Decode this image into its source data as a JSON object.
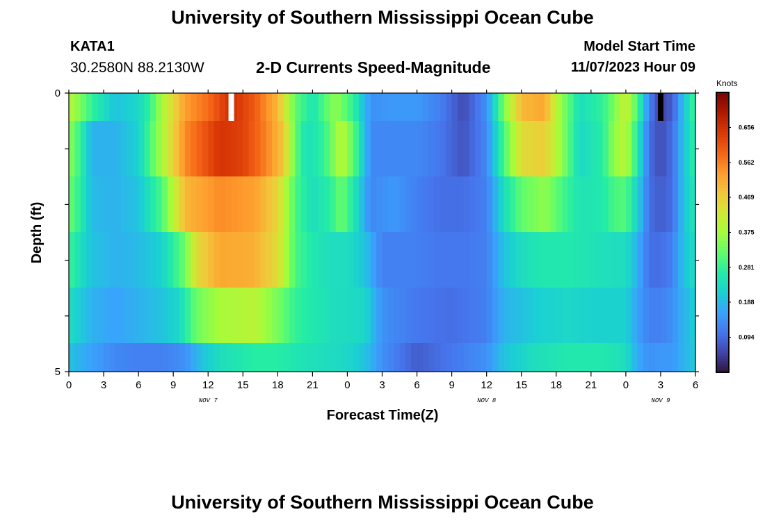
{
  "header": {
    "title": "University of Southern Mississippi Ocean Cube",
    "station_id": "KATA1",
    "coordinates": "30.2580N  88.2130W",
    "plot_title": "2-D Currents Speed-Magnitude",
    "model_start_label": "Model Start Time",
    "model_start_value": "11/07/2023 Hour 09"
  },
  "footer": {
    "title": "University of Southern Mississippi Ocean Cube"
  },
  "chart_data": {
    "type": "heatmap",
    "title": "2-D Currents Speed-Magnitude",
    "xlabel": "Forecast Time(Z)",
    "ylabel": "Depth (ft)",
    "x_tick_labels": [
      "0",
      "3",
      "6",
      "9",
      "12",
      "15",
      "18",
      "21",
      "0",
      "3",
      "6",
      "9",
      "12",
      "15",
      "18",
      "21",
      "0",
      "3",
      "6"
    ],
    "x_hours": [
      0,
      3,
      6,
      9,
      12,
      15,
      18,
      21,
      24,
      27,
      30,
      33,
      36,
      39,
      42,
      45,
      48,
      51,
      54
    ],
    "xlim": [
      0,
      54
    ],
    "day_labels": [
      {
        "label": "NOV 7",
        "hour": 12
      },
      {
        "label": "NOV 8",
        "hour": 36
      },
      {
        "label": "NOV 9",
        "hour": 51
      }
    ],
    "y_tick_labels": [
      "0",
      "5"
    ],
    "ylim": [
      0,
      5
    ],
    "depth_layers_ft": [
      0.25,
      1.25,
      2.25,
      3.25,
      4.25,
      4.75
    ],
    "colorbar": {
      "label": "Knots",
      "tick_labels": [
        "0.656",
        "0.562",
        "0.469",
        "0.375",
        "0.281",
        "0.188",
        "0.094"
      ],
      "range": [
        0,
        0.75
      ],
      "colormap": [
        "#30123b",
        "#4145ab",
        "#4675ed",
        "#39a2fc",
        "#1bcfd4",
        "#24eca6",
        "#61fc6c",
        "#a4fc3b",
        "#d1e834",
        "#f3c63a",
        "#fe9b2d",
        "#f36315",
        "#d93806",
        "#b11901",
        "#7a0402"
      ]
    },
    "time_profiles": {
      "comment_free": true,
      "layers": [
        [
          [
            0,
            0.4
          ],
          [
            2,
            0.28
          ],
          [
            4,
            0.2
          ],
          [
            6,
            0.23
          ],
          [
            7,
            0.28
          ],
          [
            8,
            0.38
          ],
          [
            10,
            0.53
          ],
          [
            12,
            0.58
          ],
          [
            14,
            0.66
          ],
          [
            16,
            0.6
          ],
          [
            18,
            0.5
          ],
          [
            19.5,
            0.32
          ],
          [
            21,
            0.25
          ],
          [
            23,
            0.36
          ],
          [
            24.5,
            0.28
          ],
          [
            26,
            0.14
          ],
          [
            28,
            0.15
          ],
          [
            30,
            0.15
          ],
          [
            32,
            0.12
          ],
          [
            34,
            0.06
          ],
          [
            36,
            0.14
          ],
          [
            37.5,
            0.34
          ],
          [
            39,
            0.5
          ],
          [
            41,
            0.52
          ],
          [
            42,
            0.4
          ],
          [
            44,
            0.24
          ],
          [
            46,
            0.28
          ],
          [
            47,
            0.34
          ],
          [
            48,
            0.42
          ],
          [
            49,
            0.3
          ],
          [
            50,
            0.12
          ],
          [
            51,
            0.05
          ],
          [
            52,
            0.08
          ],
          [
            53,
            0.2
          ],
          [
            54,
            0.3
          ]
        ],
        [
          [
            0,
            0.36
          ],
          [
            1,
            0.28
          ],
          [
            2,
            0.18
          ],
          [
            4,
            0.18
          ],
          [
            6,
            0.22
          ],
          [
            8,
            0.38
          ],
          [
            10,
            0.55
          ],
          [
            13,
            0.65
          ],
          [
            15,
            0.63
          ],
          [
            17,
            0.56
          ],
          [
            18.5,
            0.48
          ],
          [
            19.5,
            0.32
          ],
          [
            20.5,
            0.24
          ],
          [
            22,
            0.28
          ],
          [
            23.5,
            0.4
          ],
          [
            24.5,
            0.32
          ],
          [
            26,
            0.13
          ],
          [
            28,
            0.13
          ],
          [
            30,
            0.13
          ],
          [
            32,
            0.11
          ],
          [
            34,
            0.07
          ],
          [
            36,
            0.13
          ],
          [
            37.5,
            0.3
          ],
          [
            39,
            0.45
          ],
          [
            41,
            0.47
          ],
          [
            42.5,
            0.36
          ],
          [
            44,
            0.23
          ],
          [
            46,
            0.27
          ],
          [
            47,
            0.36
          ],
          [
            48,
            0.4
          ],
          [
            49,
            0.26
          ],
          [
            50,
            0.1
          ],
          [
            51,
            0.06
          ],
          [
            52,
            0.1
          ],
          [
            53,
            0.2
          ],
          [
            54,
            0.28
          ]
        ],
        [
          [
            0,
            0.33
          ],
          [
            1,
            0.27
          ],
          [
            2,
            0.19
          ],
          [
            4,
            0.18
          ],
          [
            6,
            0.2
          ],
          [
            8,
            0.3
          ],
          [
            10,
            0.5
          ],
          [
            13,
            0.55
          ],
          [
            16,
            0.53
          ],
          [
            18,
            0.46
          ],
          [
            19.5,
            0.3
          ],
          [
            21,
            0.24
          ],
          [
            22.5,
            0.27
          ],
          [
            23.5,
            0.33
          ],
          [
            24.5,
            0.26
          ],
          [
            26,
            0.13
          ],
          [
            28,
            0.15
          ],
          [
            30,
            0.12
          ],
          [
            32,
            0.1
          ],
          [
            34,
            0.1
          ],
          [
            36,
            0.12
          ],
          [
            37.5,
            0.24
          ],
          [
            39,
            0.32
          ],
          [
            41,
            0.36
          ],
          [
            42.5,
            0.3
          ],
          [
            44,
            0.25
          ],
          [
            46,
            0.26
          ],
          [
            47,
            0.3
          ],
          [
            48,
            0.31
          ],
          [
            49,
            0.22
          ],
          [
            50,
            0.1
          ],
          [
            51,
            0.08
          ],
          [
            52,
            0.1
          ],
          [
            53,
            0.2
          ],
          [
            54,
            0.26
          ]
        ],
        [
          [
            0,
            0.29
          ],
          [
            1,
            0.24
          ],
          [
            2,
            0.2
          ],
          [
            4,
            0.18
          ],
          [
            6,
            0.19
          ],
          [
            8,
            0.22
          ],
          [
            10,
            0.33
          ],
          [
            11,
            0.45
          ],
          [
            13,
            0.52
          ],
          [
            16,
            0.51
          ],
          [
            18,
            0.45
          ],
          [
            19.5,
            0.3
          ],
          [
            21,
            0.26
          ],
          [
            22.5,
            0.24
          ],
          [
            24,
            0.24
          ],
          [
            25.5,
            0.2
          ],
          [
            27,
            0.12
          ],
          [
            30,
            0.12
          ],
          [
            32,
            0.11
          ],
          [
            34,
            0.11
          ],
          [
            36,
            0.12
          ],
          [
            37.5,
            0.2
          ],
          [
            39,
            0.24
          ],
          [
            41,
            0.26
          ],
          [
            43,
            0.26
          ],
          [
            45,
            0.25
          ],
          [
            47,
            0.24
          ],
          [
            48,
            0.24
          ],
          [
            49,
            0.18
          ],
          [
            50,
            0.1
          ],
          [
            51,
            0.1
          ],
          [
            52,
            0.12
          ],
          [
            53,
            0.2
          ],
          [
            54,
            0.24
          ]
        ],
        [
          [
            0,
            0.24
          ],
          [
            1,
            0.21
          ],
          [
            2,
            0.18
          ],
          [
            4,
            0.16
          ],
          [
            6,
            0.18
          ],
          [
            8,
            0.2
          ],
          [
            9.5,
            0.23
          ],
          [
            11,
            0.33
          ],
          [
            13,
            0.38
          ],
          [
            16,
            0.4
          ],
          [
            18,
            0.34
          ],
          [
            19.5,
            0.28
          ],
          [
            21,
            0.26
          ],
          [
            23,
            0.24
          ],
          [
            25.5,
            0.23
          ],
          [
            27,
            0.14
          ],
          [
            30,
            0.11
          ],
          [
            33,
            0.1
          ],
          [
            36,
            0.12
          ],
          [
            37.5,
            0.18
          ],
          [
            39,
            0.2
          ],
          [
            41,
            0.22
          ],
          [
            43,
            0.23
          ],
          [
            45,
            0.22
          ],
          [
            47,
            0.22
          ],
          [
            48,
            0.22
          ],
          [
            49,
            0.16
          ],
          [
            50,
            0.12
          ],
          [
            51,
            0.12
          ],
          [
            52,
            0.14
          ],
          [
            53,
            0.18
          ],
          [
            54,
            0.22
          ]
        ],
        [
          [
            0,
            0.2
          ],
          [
            2,
            0.16
          ],
          [
            4,
            0.13
          ],
          [
            6,
            0.12
          ],
          [
            8,
            0.12
          ],
          [
            10,
            0.14
          ],
          [
            11.5,
            0.2
          ],
          [
            13,
            0.24
          ],
          [
            16,
            0.27
          ],
          [
            18,
            0.27
          ],
          [
            20,
            0.25
          ],
          [
            22,
            0.24
          ],
          [
            24,
            0.23
          ],
          [
            25.5,
            0.2
          ],
          [
            27,
            0.14
          ],
          [
            30,
            0.08
          ],
          [
            33,
            0.11
          ],
          [
            36,
            0.14
          ],
          [
            37.5,
            0.2
          ],
          [
            40,
            0.24
          ],
          [
            43,
            0.26
          ],
          [
            46,
            0.26
          ],
          [
            48,
            0.24
          ],
          [
            49,
            0.17
          ],
          [
            50,
            0.14
          ],
          [
            51,
            0.15
          ],
          [
            52,
            0.15
          ],
          [
            53,
            0.18
          ],
          [
            54,
            0.21
          ]
        ]
      ]
    },
    "special_cells": [
      {
        "hour": 14,
        "layer": 0,
        "color": "#ffffff"
      },
      {
        "hour": 51,
        "layer": 0,
        "color": "#000000"
      }
    ],
    "grid": false
  }
}
